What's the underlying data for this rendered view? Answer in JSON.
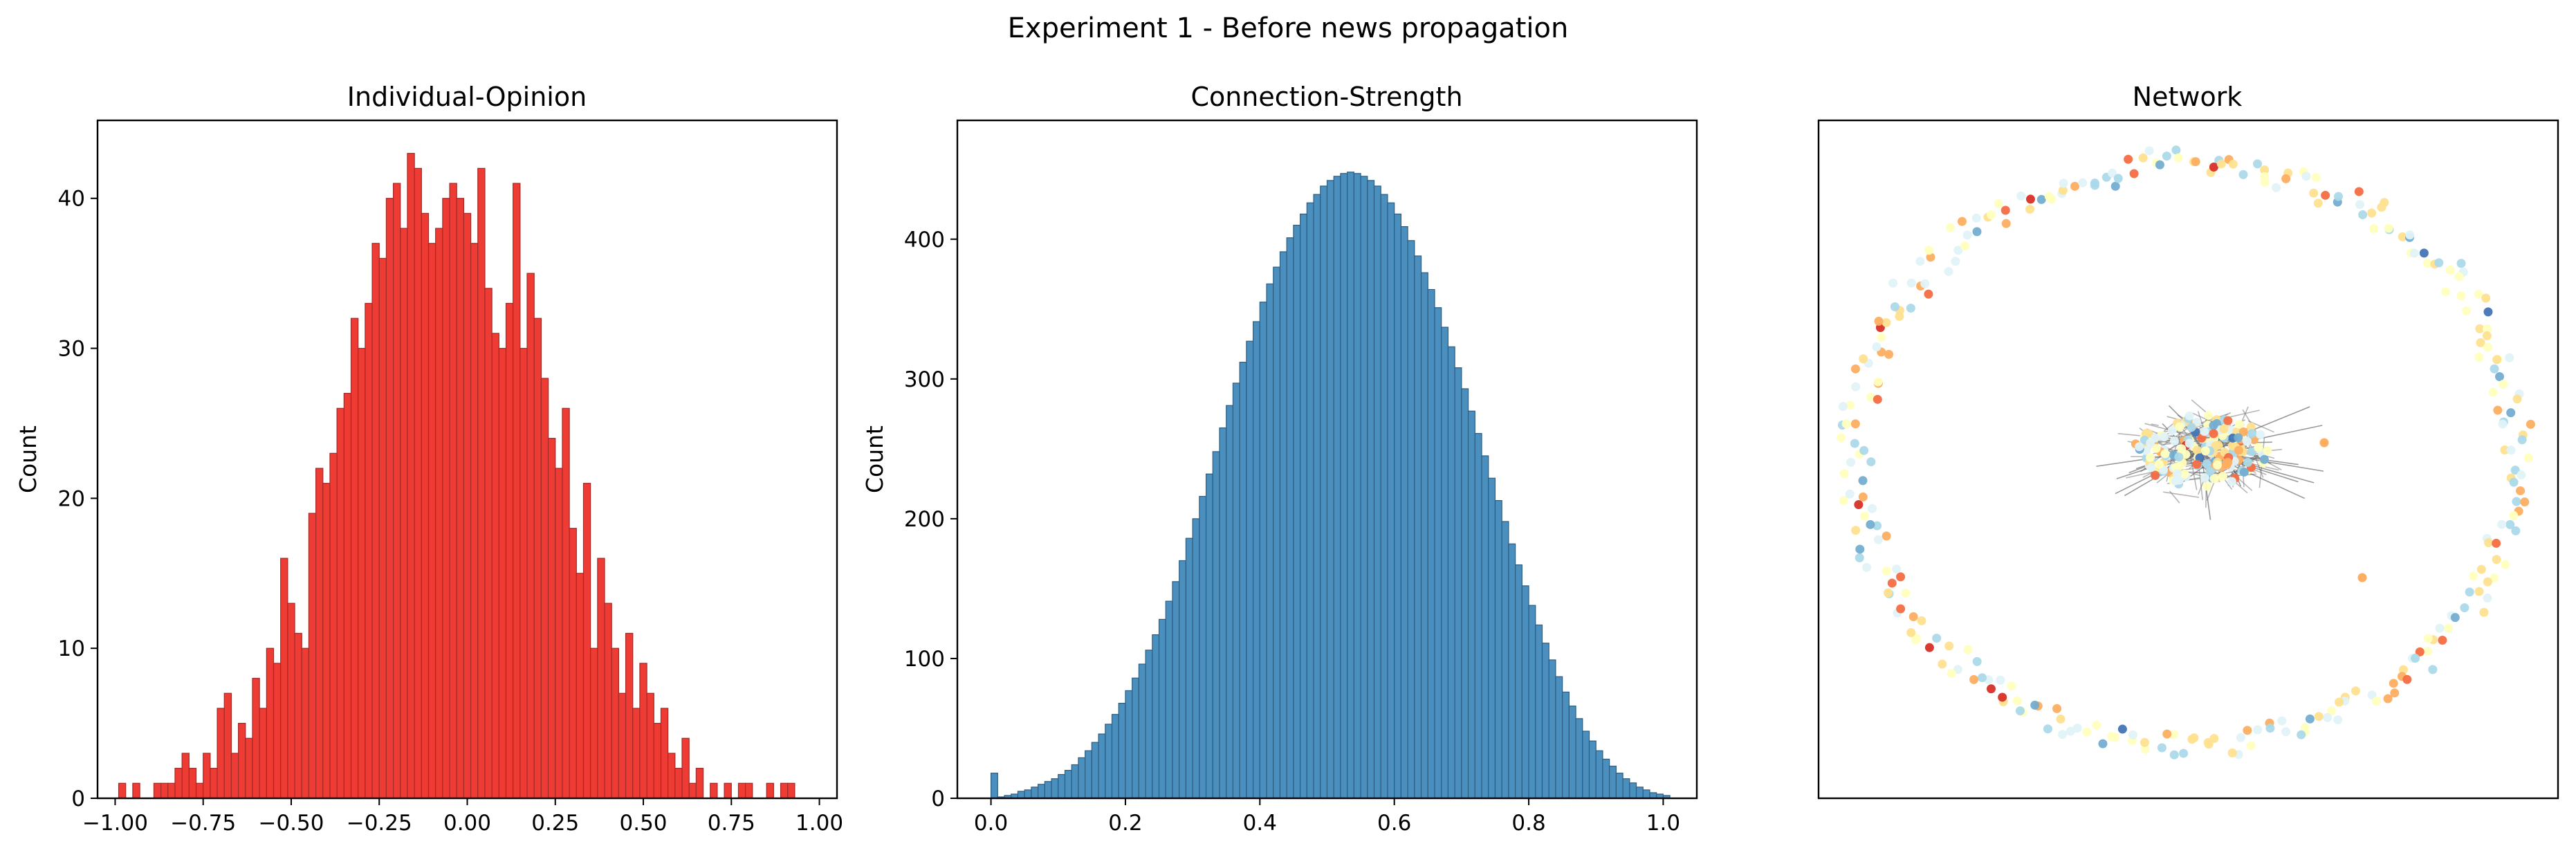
{
  "suptitle": "Experiment 1 - Before news propagation",
  "chart_data": [
    {
      "type": "bar",
      "title": "Individual-Opinion",
      "xlabel": "",
      "ylabel": "Count",
      "xlim": [
        -1.05,
        1.05
      ],
      "ylim": [
        0,
        45.2
      ],
      "xticks": [
        -1.0,
        -0.75,
        -0.5,
        -0.25,
        0.0,
        0.25,
        0.5,
        0.75,
        1.0
      ],
      "xtick_labels": [
        "−1.00",
        "−0.75",
        "−0.50",
        "−0.25",
        "0.00",
        "0.25",
        "0.50",
        "0.75",
        "1.00"
      ],
      "yticks": [
        0,
        10,
        20,
        30,
        40
      ],
      "ytick_labels": [
        "0",
        "10",
        "20",
        "30",
        "40"
      ],
      "bin_start": -0.99,
      "bin_width": 0.02,
      "values": [
        1,
        0,
        1,
        0,
        0,
        1,
        1,
        1,
        2,
        3,
        2,
        1,
        3,
        2,
        6,
        7,
        3,
        5,
        4,
        8,
        6,
        10,
        9,
        16,
        13,
        11,
        10,
        19,
        22,
        21,
        23,
        26,
        27,
        32,
        30,
        33,
        37,
        36,
        40,
        41,
        38,
        43,
        42,
        39,
        37,
        38,
        40,
        41,
        40,
        39,
        37,
        42,
        34,
        31,
        30,
        33,
        41,
        30,
        35,
        32,
        28,
        24,
        22,
        26,
        18,
        15,
        21,
        10,
        16,
        13,
        10,
        7,
        11,
        6,
        9,
        7,
        5,
        6,
        3,
        2,
        4,
        1,
        2,
        0,
        1,
        0,
        1,
        0,
        1,
        1,
        0,
        0,
        1,
        0,
        1,
        1,
        0,
        0,
        0
      ],
      "colors": {
        "bar_fill": "#ee3b34",
        "bar_edge": "#a32a28"
      }
    },
    {
      "type": "bar",
      "title": "Connection-Strength",
      "xlabel": "",
      "ylabel": "Count",
      "xlim": [
        -0.05,
        1.05
      ],
      "ylim": [
        0,
        485
      ],
      "xticks": [
        0.0,
        0.2,
        0.4,
        0.6,
        0.8,
        1.0
      ],
      "xtick_labels": [
        "0.0",
        "0.2",
        "0.4",
        "0.6",
        "0.8",
        "1.0"
      ],
      "yticks": [
        0,
        100,
        200,
        300,
        400
      ],
      "ytick_labels": [
        "0",
        "100",
        "200",
        "300",
        "400"
      ],
      "bin_start": 0.0,
      "bin_width": 0.01,
      "values": [
        18,
        1,
        2,
        3,
        5,
        6,
        8,
        10,
        12,
        14,
        17,
        20,
        24,
        29,
        34,
        40,
        46,
        53,
        60,
        68,
        77,
        86,
        96,
        106,
        117,
        128,
        141,
        155,
        170,
        186,
        200,
        216,
        232,
        248,
        265,
        281,
        297,
        312,
        327,
        341,
        355,
        368,
        380,
        391,
        401,
        410,
        418,
        426,
        432,
        438,
        442,
        445,
        447,
        448,
        447,
        445,
        442,
        438,
        432,
        426,
        418,
        409,
        399,
        388,
        376,
        364,
        351,
        337,
        323,
        308,
        293,
        277,
        261,
        245,
        229,
        213,
        198,
        182,
        167,
        152,
        138,
        124,
        111,
        99,
        87,
        76,
        66,
        57,
        48,
        41,
        34,
        28,
        23,
        18,
        14,
        11,
        8,
        6,
        4,
        3,
        2
      ],
      "colors": {
        "bar_fill": "#4b8fbf",
        "bar_edge": "#2c5d82"
      }
    },
    {
      "type": "scatter",
      "title": "Network",
      "xlabel": "",
      "ylabel": "",
      "grid": false,
      "axes_visible": false,
      "colormap": [
        "#313695",
        "#4575b4",
        "#74add1",
        "#abd9e9",
        "#e0f3f8",
        "#ffffbf",
        "#fee090",
        "#fdae61",
        "#f46d43",
        "#d73027",
        "#a50026"
      ],
      "edge_color": "#7a7a7a"
    }
  ]
}
